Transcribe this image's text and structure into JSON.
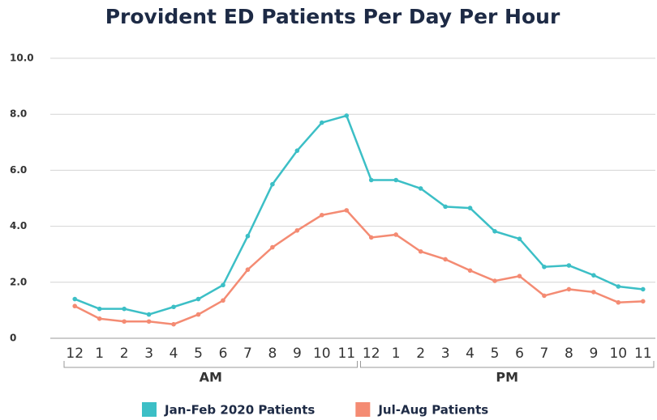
{
  "chart_data": {
    "type": "line",
    "title": "Provident ED Patients Per Day Per Hour",
    "categories": [
      "12",
      "1",
      "2",
      "3",
      "4",
      "5",
      "6",
      "7",
      "8",
      "9",
      "10",
      "11",
      "12",
      "1",
      "2",
      "3",
      "4",
      "5",
      "6",
      "7",
      "8",
      "9",
      "10",
      "11"
    ],
    "groups": [
      "AM",
      "PM"
    ],
    "series": [
      {
        "name": "Jan-Feb 2020 Patients",
        "color": "#3cbfc6",
        "values": [
          1.4,
          1.05,
          1.05,
          0.85,
          1.12,
          1.4,
          1.9,
          3.65,
          5.5,
          6.7,
          7.7,
          7.95,
          5.65,
          5.65,
          5.35,
          4.7,
          4.65,
          3.82,
          3.55,
          2.55,
          2.6,
          2.25,
          1.85,
          1.75
        ]
      },
      {
        "name": "Jul-Aug Patients",
        "color": "#f48b73",
        "values": [
          1.15,
          0.7,
          0.6,
          0.6,
          0.5,
          0.85,
          1.35,
          2.45,
          3.25,
          3.85,
          4.4,
          4.57,
          3.6,
          3.7,
          3.1,
          2.82,
          2.42,
          2.05,
          2.22,
          1.52,
          1.75,
          1.65,
          1.28,
          1.32
        ]
      }
    ],
    "ylim": [
      0,
      10
    ],
    "yticks": [
      0,
      {
        "value": 2,
        "label": "2.0"
      },
      {
        "value": 4,
        "label": "4.0"
      },
      {
        "value": 6,
        "label": "6.0"
      },
      {
        "value": 8,
        "label": "8.0"
      },
      {
        "value": 10,
        "label": "10.0"
      }
    ],
    "grid": true
  }
}
